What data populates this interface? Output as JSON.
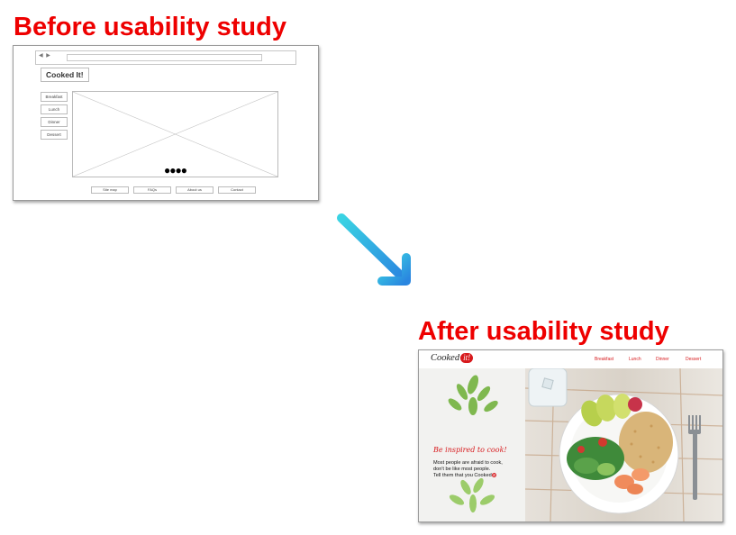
{
  "before": {
    "heading": "Before usability study",
    "browser_nav": "◀ ▶",
    "logo": "Cooked It!",
    "nav_items": [
      "Breakfast",
      "Lunch",
      "Dinner",
      "Dessert"
    ],
    "carousel_dots": "●●●●",
    "footer_links": [
      "Site map",
      "FAQs",
      "About us",
      "Contact"
    ]
  },
  "after": {
    "heading": "After usability study",
    "brand_prefix": "Cooked",
    "brand_badge": "it!",
    "nav_items": [
      "Breakfast",
      "Lunch",
      "Dinner",
      "Dessert"
    ],
    "tagline": "Be inspired to cook!",
    "blurb_line1": "Most people are afraid to cook,",
    "blurb_line2": "don't be like most people.",
    "blurb_line3": "Tell them that you Cooked",
    "blurb_badge": "it!"
  },
  "colors": {
    "heading": "#ee0000",
    "brand_red": "#d7191c",
    "arrow_start": "#3ad3e3",
    "arrow_end": "#2a86e0"
  },
  "icons": {
    "arrow": "diagonal-down-right-arrow-icon",
    "back_forward": "browser-nav-arrows-icon"
  }
}
